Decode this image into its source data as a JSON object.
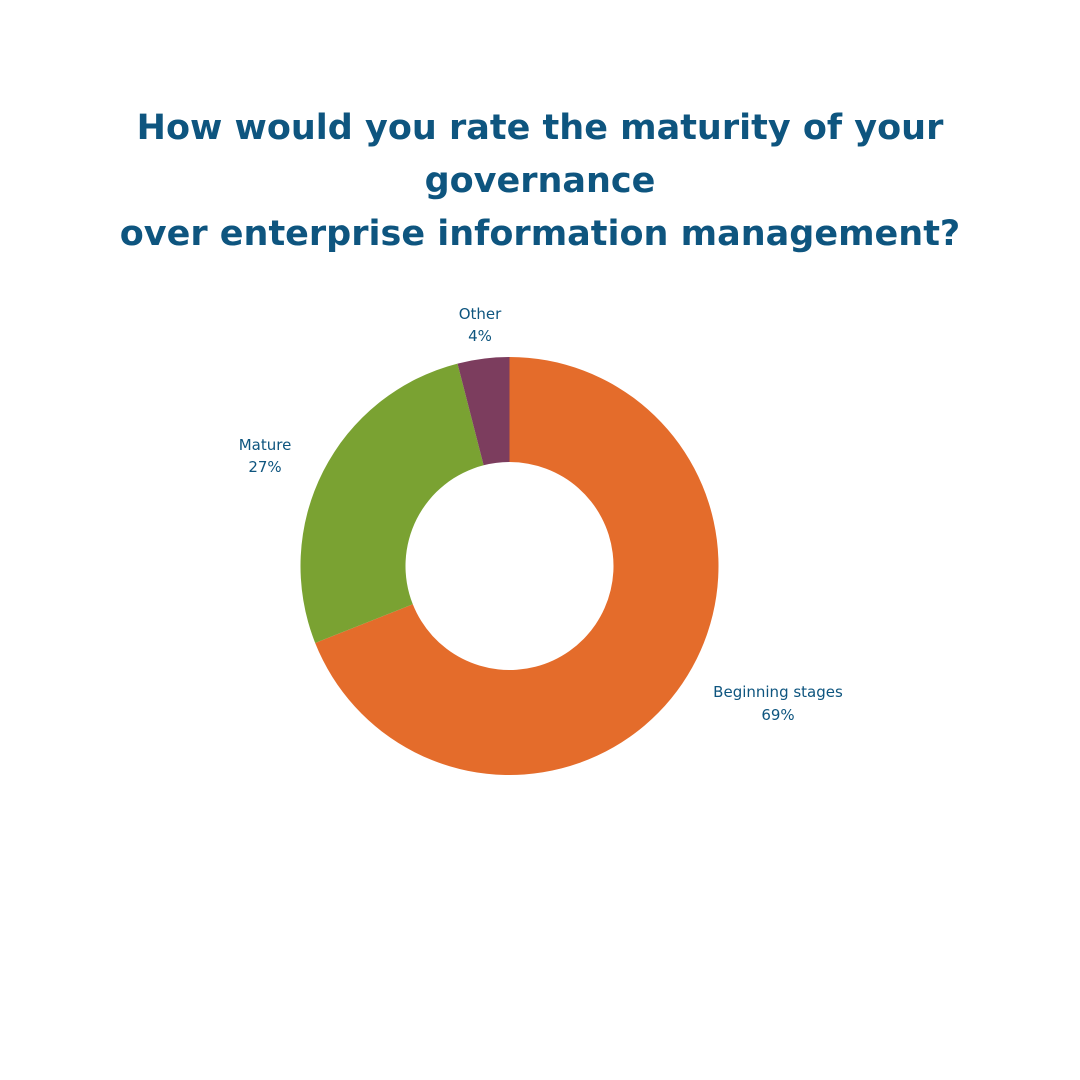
{
  "chart_data": {
    "type": "pie",
    "style": "donut",
    "title_lines": [
      "How would you rate the maturity of your governance",
      "over enterprise information management?"
    ],
    "unit": "%",
    "slices": [
      {
        "label": "Beginning stages",
        "value": 69,
        "value_label": "69%",
        "color": "#e46c2b"
      },
      {
        "label": "Mature",
        "value": 27,
        "value_label": "27%",
        "color": "#7aa232"
      },
      {
        "label": "Other",
        "value": 4,
        "value_label": "4%",
        "color": "#7c3d5e"
      }
    ],
    "label_color": "#0e557f",
    "background": "#ffffff",
    "legend": "none"
  }
}
